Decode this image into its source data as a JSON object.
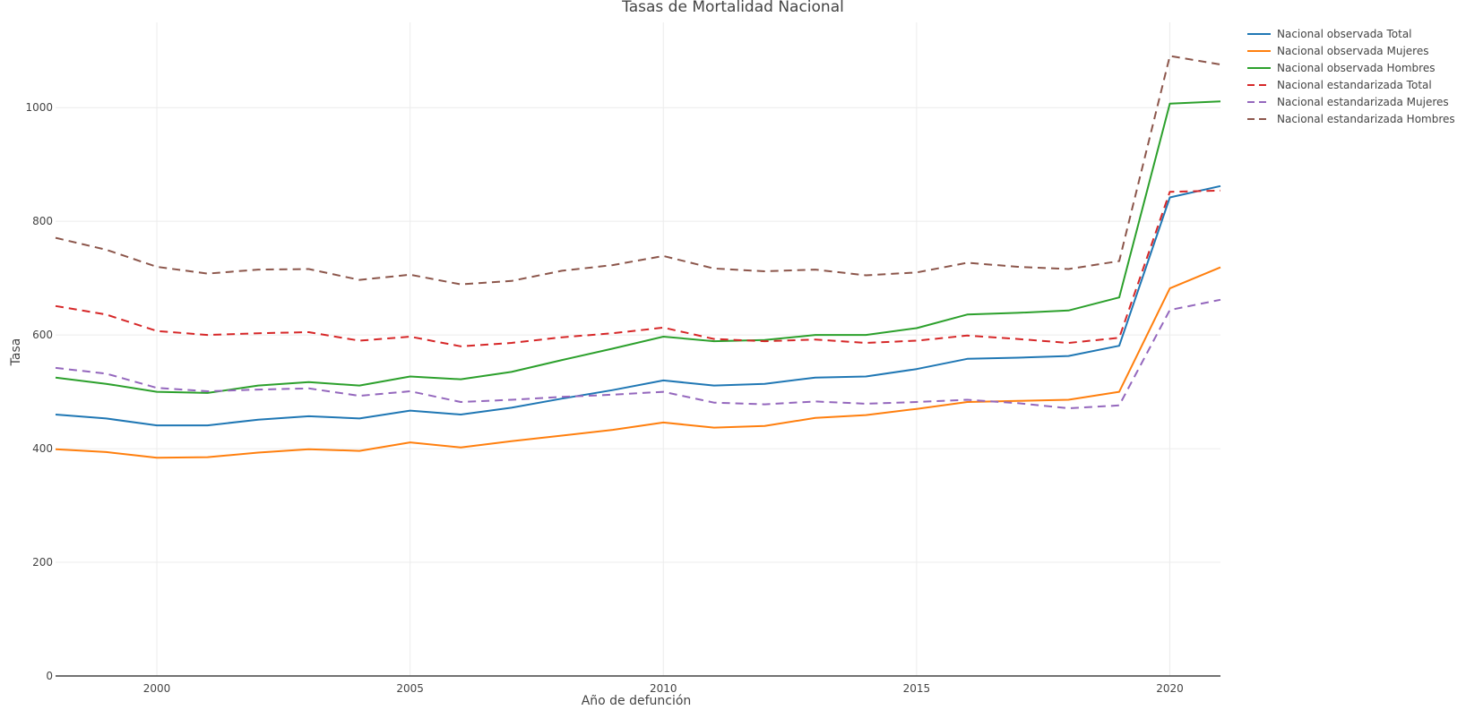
{
  "chart_data": {
    "type": "line",
    "title": "Tasas de Mortalidad Nacional",
    "xlabel": "Año de defunción",
    "ylabel": "Tasa",
    "xlim": [
      1998,
      2021
    ],
    "ylim": [
      0,
      1150
    ],
    "x_ticks": [
      2000,
      2005,
      2010,
      2015,
      2020
    ],
    "y_ticks": [
      0,
      200,
      400,
      600,
      800,
      1000
    ],
    "grid": true,
    "legend_position": "top-right, outside plot",
    "x": [
      1998,
      1999,
      2000,
      2001,
      2002,
      2003,
      2004,
      2005,
      2006,
      2007,
      2008,
      2009,
      2010,
      2011,
      2012,
      2013,
      2014,
      2015,
      2016,
      2017,
      2018,
      2019,
      2020,
      2021
    ],
    "series": [
      {
        "name": "Nacional observada Total",
        "color": "#1f77b4",
        "dash": "solid",
        "values": [
          460,
          453,
          441,
          441,
          451,
          457,
          453,
          467,
          460,
          472,
          488,
          503,
          520,
          511,
          514,
          525,
          527,
          540,
          558,
          560,
          563,
          581,
          842,
          862
        ]
      },
      {
        "name": "Nacional observada Mujeres",
        "color": "#ff7f0e",
        "dash": "solid",
        "values": [
          399,
          394,
          384,
          385,
          393,
          399,
          396,
          411,
          402,
          413,
          423,
          433,
          446,
          437,
          440,
          454,
          459,
          470,
          482,
          484,
          486,
          500,
          682,
          719
        ]
      },
      {
        "name": "Nacional observada Hombres",
        "color": "#2ca02c",
        "dash": "solid",
        "values": [
          525,
          514,
          500,
          498,
          511,
          517,
          511,
          527,
          522,
          535,
          556,
          576,
          597,
          589,
          591,
          600,
          600,
          612,
          636,
          639,
          643,
          666,
          1007,
          1011
        ]
      },
      {
        "name": "Nacional estandarizada Total",
        "color": "#d62728",
        "dash": "dash",
        "values": [
          651,
          636,
          607,
          600,
          603,
          605,
          590,
          597,
          580,
          586,
          596,
          603,
          613,
          593,
          589,
          592,
          586,
          590,
          599,
          593,
          586,
          595,
          852,
          854
        ]
      },
      {
        "name": "Nacional estandarizada Mujeres",
        "color": "#9467bd",
        "dash": "dash",
        "values": [
          542,
          532,
          507,
          501,
          504,
          506,
          493,
          501,
          482,
          486,
          491,
          495,
          500,
          481,
          478,
          483,
          479,
          482,
          486,
          480,
          471,
          476,
          644,
          662
        ]
      },
      {
        "name": "Nacional estandarizada Hombres",
        "color": "#8c564b",
        "dash": "dash",
        "values": [
          771,
          750,
          720,
          708,
          715,
          716,
          697,
          706,
          689,
          695,
          713,
          723,
          739,
          717,
          712,
          715,
          705,
          710,
          727,
          720,
          716,
          730,
          1091,
          1076
        ]
      }
    ]
  }
}
